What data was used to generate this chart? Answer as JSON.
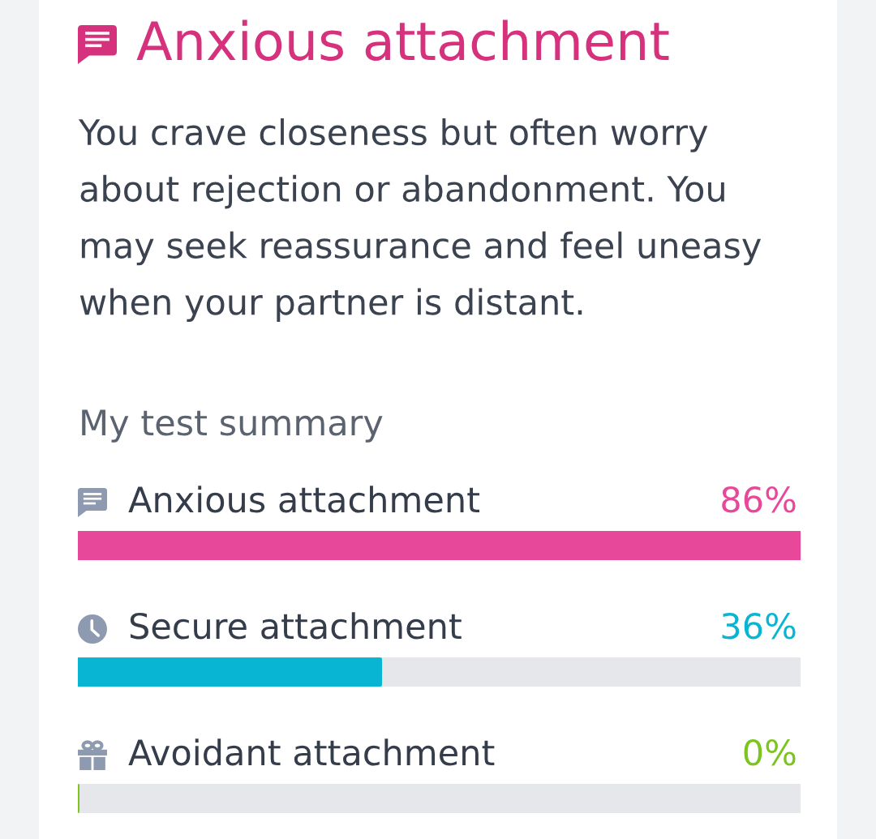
{
  "chart_data": {
    "type": "bar",
    "orientation": "horizontal",
    "title": "Anxious attachment",
    "subtitle": "You crave closeness but often worry about rejection or abandonment. You may seek reassurance and feel uneasy when your partner is distant.",
    "annotations": [
      "My test summary"
    ],
    "categories": [
      "Anxious attachment",
      "Secure attachment",
      "Avoidant attachment"
    ],
    "values": [
      86,
      36,
      0
    ],
    "colors": [
      "#e8489a",
      "#08b5d3",
      "#7cc41e"
    ],
    "value_labels": [
      "86%",
      "36%",
      "0%"
    ],
    "xlim": [
      0,
      86
    ]
  }
}
